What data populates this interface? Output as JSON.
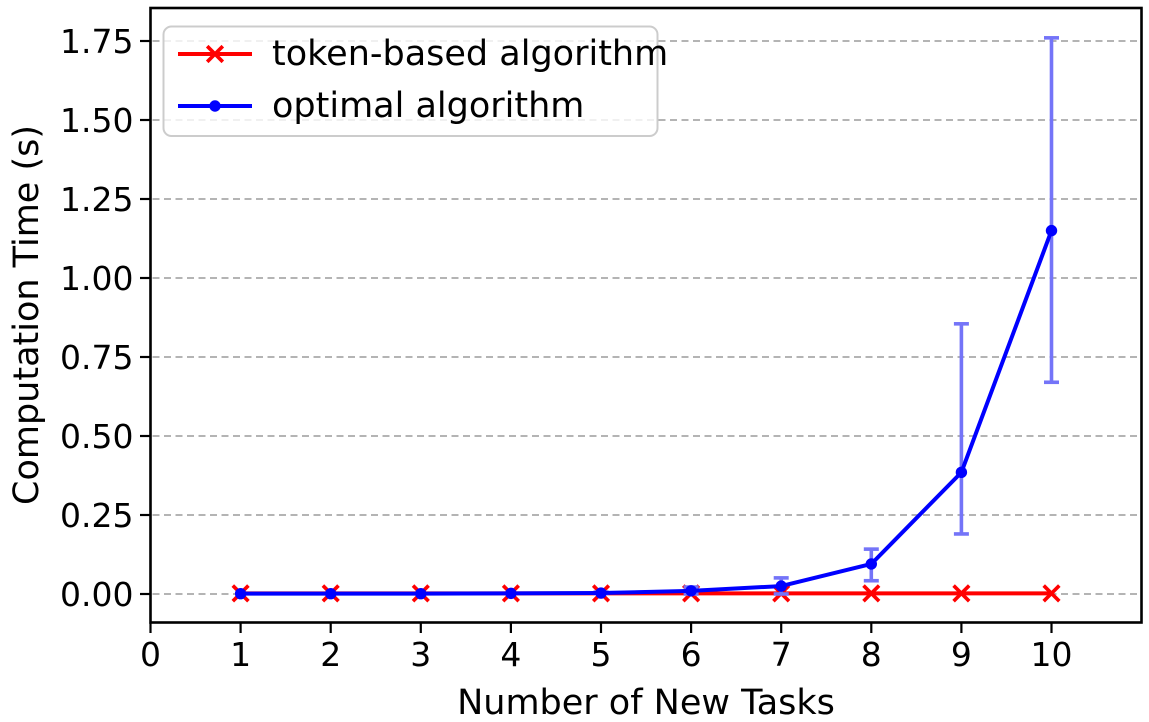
{
  "figure": {
    "background": "#ffffff",
    "border_color": "#000000"
  },
  "chart_data": {
    "type": "line",
    "title": "",
    "xlabel": "Number of New Tasks",
    "ylabel": "Computation Time (s)",
    "xlim": [
      0,
      11
    ],
    "ylim": [
      -0.09,
      1.855
    ],
    "grid": "horizontal, dashed, gray, on",
    "legend_position": "upper left",
    "xtick_labels": [
      "0",
      "1",
      "2",
      "3",
      "4",
      "5",
      "6",
      "7",
      "8",
      "9",
      "10"
    ],
    "xtick_values": [
      0,
      1,
      2,
      3,
      4,
      5,
      6,
      7,
      8,
      9,
      10
    ],
    "ytick_labels": [
      "0.00",
      "0.25",
      "0.50",
      "0.75",
      "1.00",
      "1.25",
      "1.50",
      "1.75"
    ],
    "ytick_values": [
      0.0,
      0.25,
      0.5,
      0.75,
      1.0,
      1.25,
      1.5,
      1.75
    ],
    "x": [
      1,
      2,
      3,
      4,
      5,
      6,
      7,
      8,
      9,
      10
    ],
    "series": [
      {
        "name": "token-based algorithm",
        "color": "#ff0000",
        "marker": "x",
        "values": [
          0.002,
          0.002,
          0.002,
          0.002,
          0.002,
          0.002,
          0.002,
          0.002,
          0.002,
          0.002
        ],
        "err_low": [
          null,
          null,
          null,
          null,
          null,
          null,
          null,
          null,
          null,
          null
        ],
        "err_high": [
          null,
          null,
          null,
          null,
          null,
          null,
          null,
          null,
          null,
          null
        ]
      },
      {
        "name": "optimal algorithm",
        "color": "#0000ff",
        "marker": "circle",
        "error_bar_color": "#7474f8",
        "values": [
          0.001,
          0.001,
          0.001,
          0.002,
          0.003,
          0.01,
          0.025,
          0.095,
          0.385,
          1.15
        ],
        "err_low": [
          null,
          null,
          null,
          null,
          0.001,
          0.0,
          0.0,
          0.042,
          0.19,
          0.67
        ],
        "err_high": [
          null,
          null,
          null,
          null,
          0.006,
          0.022,
          0.051,
          0.142,
          0.855,
          1.76
        ]
      }
    ],
    "colors": {
      "grid": "#aaaaaa",
      "spine": "#000000",
      "legend_border": "#cccccc",
      "legend_background": "rgba(255,255,255,0.8)"
    }
  }
}
